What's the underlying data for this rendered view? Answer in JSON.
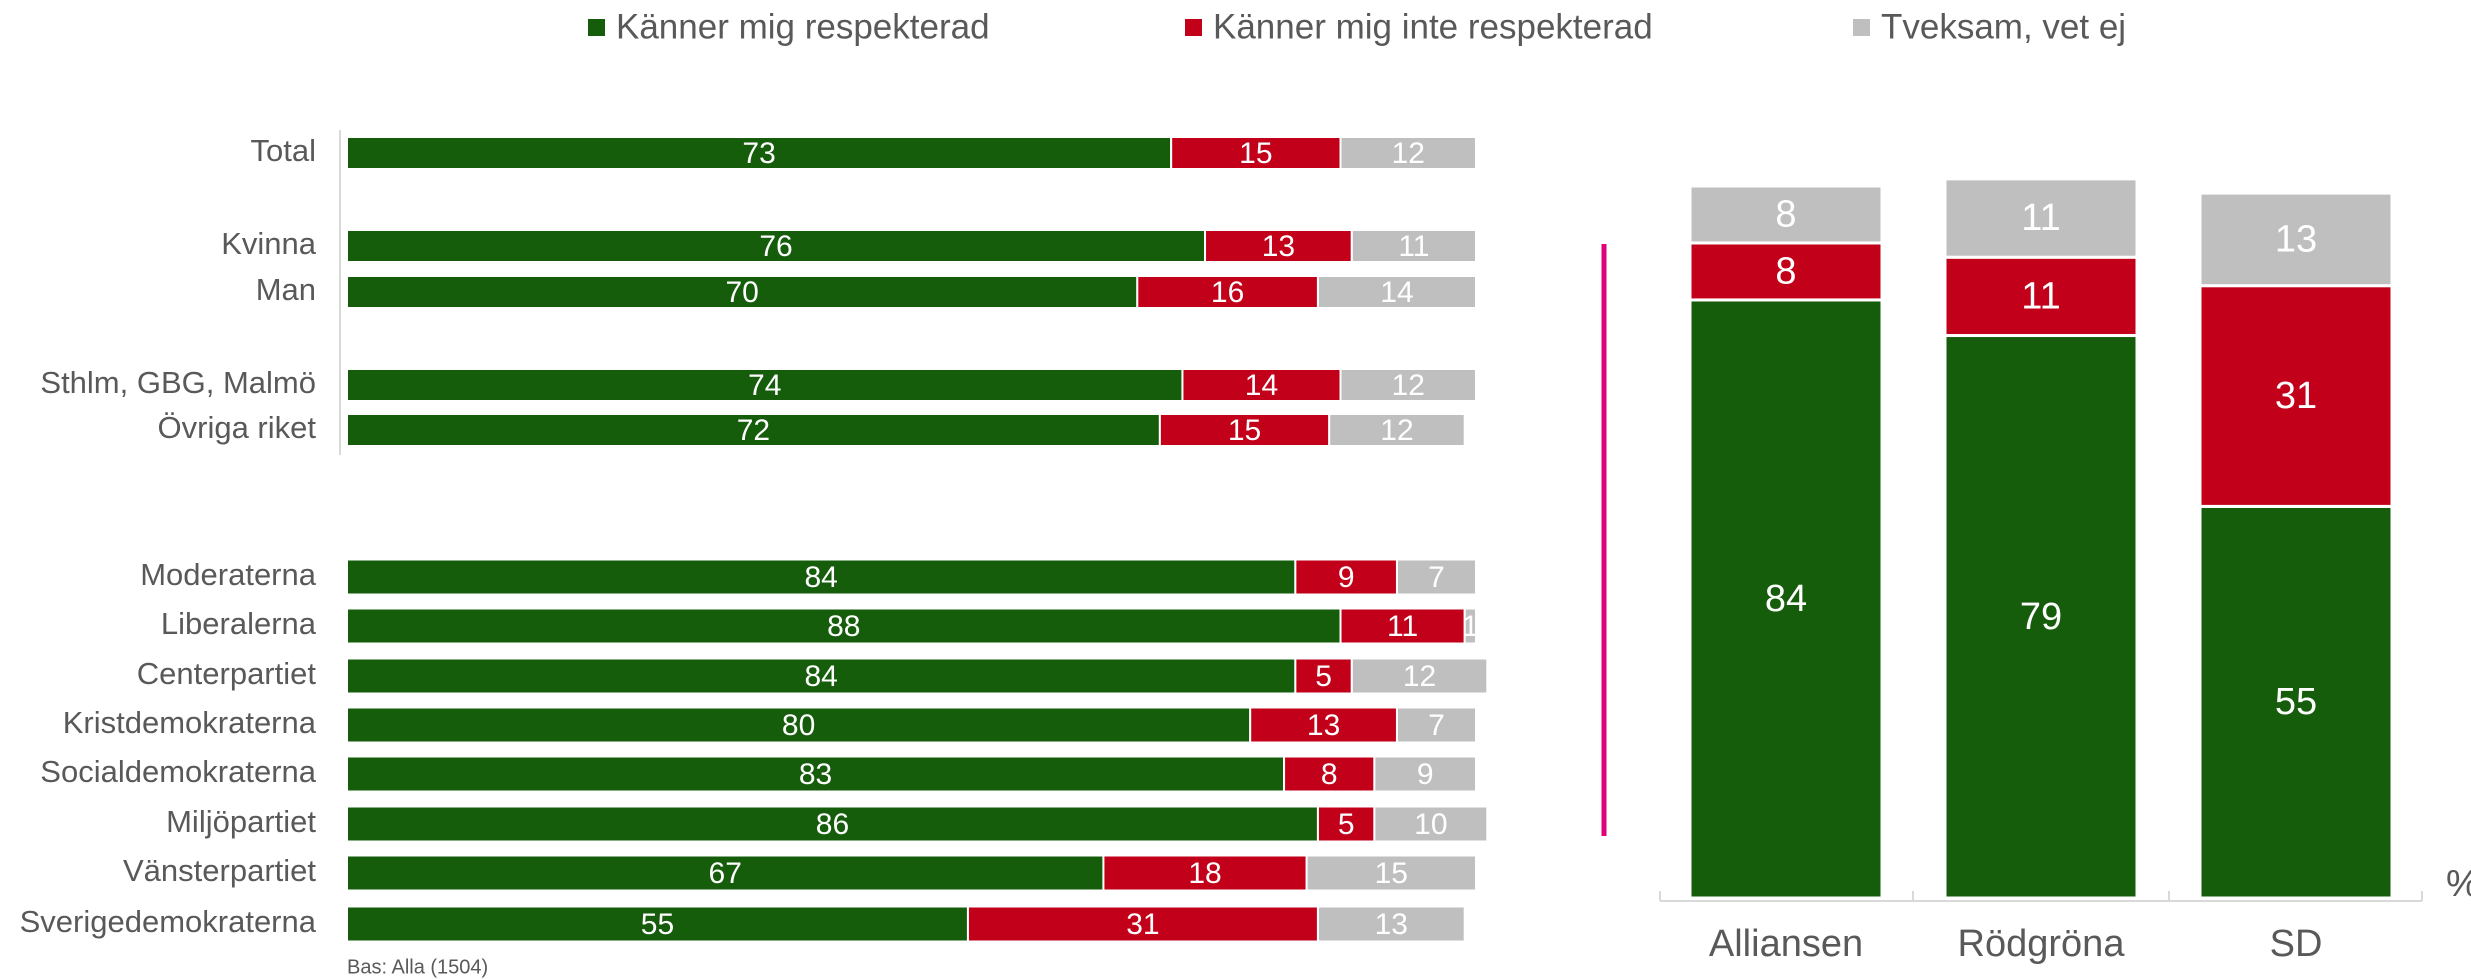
{
  "chart_data": [
    {
      "type": "hbar-stacked",
      "categories": [
        "Total",
        "Kvinna",
        "Man",
        "Sthlm, GBG, Malmö",
        "Övriga riket",
        "Moderaterna",
        "Liberalerna",
        "Centerpartiet",
        "Kristdemokraterna",
        "Socialdemokraterna",
        "Miljöpartiet",
        "Vänsterpartiet",
        "Sverigedemokraterna"
      ],
      "series": [
        {
          "name": "Känner mig respekterad",
          "color": "#155d0b",
          "values": [
            73,
            76,
            70,
            74,
            72,
            84,
            88,
            84,
            80,
            83,
            86,
            67,
            55
          ]
        },
        {
          "name": "Känner mig inte respekterad",
          "color": "#c2001a",
          "values": [
            15,
            13,
            16,
            14,
            15,
            9,
            11,
            5,
            13,
            8,
            5,
            18,
            31
          ]
        },
        {
          "name": "Tveksam, vet ej",
          "color": "#bfbfbf",
          "values": [
            12,
            11,
            14,
            12,
            12,
            7,
            1,
            12,
            7,
            9,
            10,
            15,
            13
          ]
        }
      ],
      "xlim": [
        0,
        100
      ],
      "footnote": "Bas: Alla (1504)"
    },
    {
      "type": "bar-stacked",
      "categories": [
        "Alliansen",
        "Rödgröna",
        "SD"
      ],
      "series": [
        {
          "color": "#155d0b",
          "values": [
            84,
            79,
            55
          ]
        },
        {
          "color": "#c2001a",
          "values": [
            8,
            11,
            31
          ]
        },
        {
          "color": "#bfbfbf",
          "values": [
            8,
            11,
            13
          ]
        }
      ],
      "ylim": [
        0,
        100
      ],
      "y_label": "%"
    }
  ]
}
